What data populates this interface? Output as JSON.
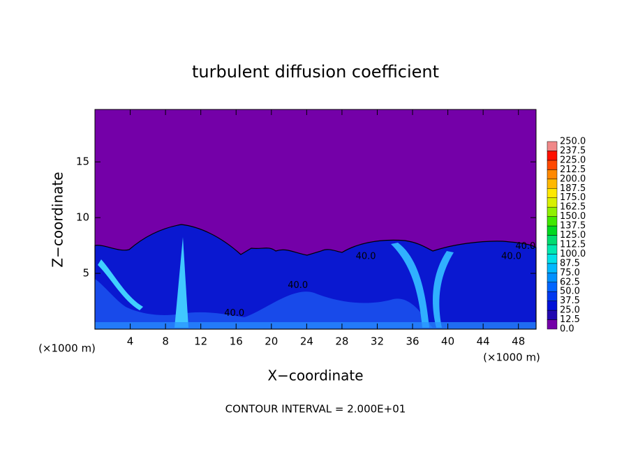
{
  "chart_data": {
    "type": "contour",
    "title": "turbulent diffusion coefficient",
    "xlabel": "X−coordinate",
    "ylabel": "Z−coordinate",
    "x_unit_label": "(×1000 m)",
    "y_unit_label": "(×1000 m)",
    "footnote": "CONTOUR INTERVAL = 2.000E+01",
    "xlim": [
      0,
      50
    ],
    "ylim": [
      0,
      19.7
    ],
    "xticks": [
      4,
      8,
      12,
      16,
      20,
      24,
      28,
      32,
      36,
      40,
      44,
      48
    ],
    "yticks": [
      5,
      10,
      15
    ],
    "background_color": "#7400a8",
    "colorbar": {
      "levels": [
        {
          "value": 0,
          "label": "0.0"
        },
        {
          "value": 12.5,
          "label": "12.5"
        },
        {
          "value": 25,
          "label": "25.0"
        },
        {
          "value": 37.5,
          "label": "37.5"
        },
        {
          "value": 50,
          "label": "50.0"
        },
        {
          "value": 62.5,
          "label": "62.5"
        },
        {
          "value": 75,
          "label": "75.0"
        },
        {
          "value": 87.5,
          "label": "87.5"
        },
        {
          "value": 100,
          "label": "100.0"
        },
        {
          "value": 112.5,
          "label": "112.5"
        },
        {
          "value": 125,
          "label": "125.0"
        },
        {
          "value": 137.5,
          "label": "137.5"
        },
        {
          "value": 150,
          "label": "150.0"
        },
        {
          "value": 162.5,
          "label": "162.5"
        },
        {
          "value": 175,
          "label": "175.0"
        },
        {
          "value": 187.5,
          "label": "187.5"
        },
        {
          "value": 200,
          "label": "200.0"
        },
        {
          "value": 212.5,
          "label": "212.5"
        },
        {
          "value": 225,
          "label": "225.0"
        },
        {
          "value": 237.5,
          "label": "237.5"
        },
        {
          "value": 250,
          "label": "250.0"
        }
      ],
      "colors": [
        "#7400a8",
        "#2208b0",
        "#0010d8",
        "#0038f0",
        "#0064ff",
        "#0090ff",
        "#00b8ff",
        "#00e0e8",
        "#00e8b0",
        "#00dc70",
        "#00d820",
        "#40e800",
        "#90f000",
        "#d8f000",
        "#ffe800",
        "#ffb800",
        "#ff8800",
        "#ff4800",
        "#ff1000",
        "#f08888"
      ]
    },
    "contour_labels": [
      {
        "text": "40.0",
        "x": 48.8,
        "y": 7.4
      },
      {
        "text": "40.0",
        "x": 47.2,
        "y": 6.5
      },
      {
        "text": "40.0",
        "x": 30.7,
        "y": 6.5
      },
      {
        "text": "40.0",
        "x": 23.0,
        "y": 3.9
      },
      {
        "text": "40.0",
        "x": 15.8,
        "y": 1.4
      }
    ]
  }
}
